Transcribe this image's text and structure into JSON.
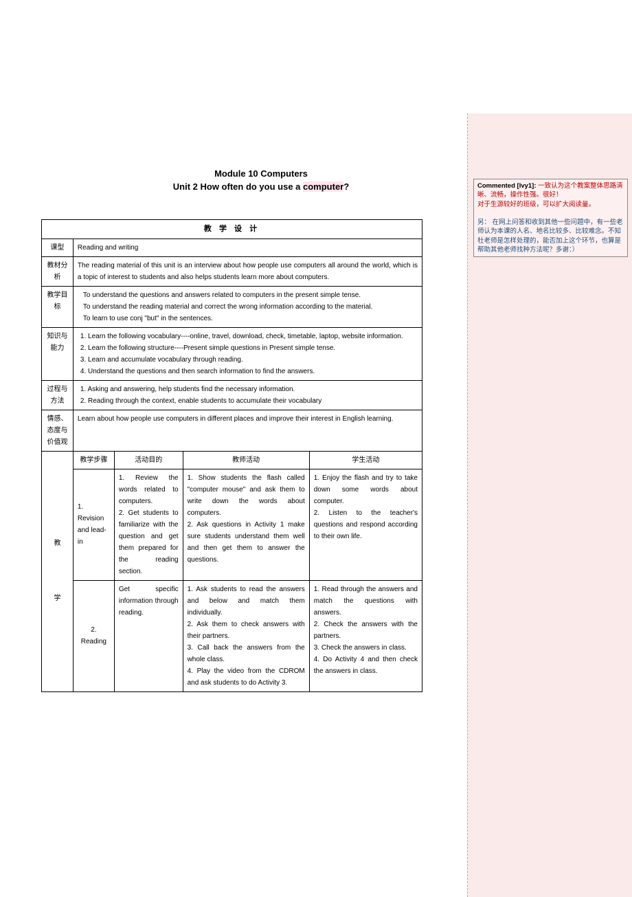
{
  "title": {
    "module": "Module 10 Computers",
    "unit_prefix": "Unit 2 How often do you use a ",
    "unit_highlight": "computer",
    "unit_suffix": "?"
  },
  "table_header": "教  学  设  计",
  "rows": {
    "type": {
      "label": "课型",
      "content": "Reading and writing"
    },
    "material": {
      "label": "教材分析",
      "content": "The reading material of this unit is an interview about how people use computers all around the world, which is a topic of interest to students and also helps students learn more about computers."
    },
    "goals": {
      "label": "教学目标",
      "items": [
        "To understand the questions and answers related to computers in the present simple tense.",
        "To understand the reading material and correct the wrong information according to the material.",
        "To learn to use conj \"but\" in the sentences."
      ]
    },
    "knowledge": {
      "label": "知识与能力",
      "items": [
        "1.  Learn the following vocabulary----online, travel, download, check, timetable, laptop, website information.",
        "2.  Learn the following structure----Present simple questions in Present simple tense.",
        "3.  Learn and accumulate vocabulary through reading.",
        "4.  Understand the questions and then search information to find the answers."
      ]
    },
    "process": {
      "label": "过程与方法",
      "items": [
        "1.  Asking and answering, help students find the necessary information.",
        "2.  Reading through the context, enable students to accumulate their vocabulary"
      ]
    },
    "attitude": {
      "label": "情感、态度与价值观",
      "content": "Learn about how people use computers in different places and improve their interest in English learning."
    }
  },
  "steps_header": {
    "col1": "教学步骤",
    "col2": "活动目的",
    "col3": "教师活动",
    "col4": "学生活动"
  },
  "side_label": "教\n\n\n\n学",
  "steps": [
    {
      "name": "1. Revision and lead-in",
      "purpose": "1. Review the words related to computers.\n2. Get students to familiarize with the question and get them prepared for the reading section.",
      "teacher": "1. Show students the flash called \"computer mouse\" and ask them to write down the words about computers.\n2. Ask questions in Activity 1 make sure students understand them well and then get them to answer the questions.",
      "student": "1. Enjoy the flash and try to take down some words about computer.\n2. Listen to the teacher's questions and respond according to their own life."
    },
    {
      "name": "2. Reading",
      "purpose": "Get specific information through reading.",
      "teacher": "1. Ask students to read the answers and below and match them individually.\n2. Ask them to check answers with their partners.\n3. Call back the answers from the whole class.\n4. Play the video from the CDROM and ask students to do Activity 3.",
      "student": "1. Read through the answers and match the questions with answers.\n2. Check the answers with the partners.\n3. Check the answers in class.\n4. Do Activity 4 and then check the answers in class."
    }
  ],
  "comment": {
    "header": "Commented [Ivy1]: ",
    "line1": "一致认为这个教案整体思路清晰、流畅，操作性强。很好！",
    "line2": "对于生源较好的班级，可以扩大阅读量。",
    "line3": "另：  在网上问答和收到其他一些问题中，有一些老师认为本课的人名、地名比较多、比较难念。不知杜老师是怎样处理的，能否加上这个环节，也算是帮助其他老师找种方法呢？多谢：）"
  }
}
